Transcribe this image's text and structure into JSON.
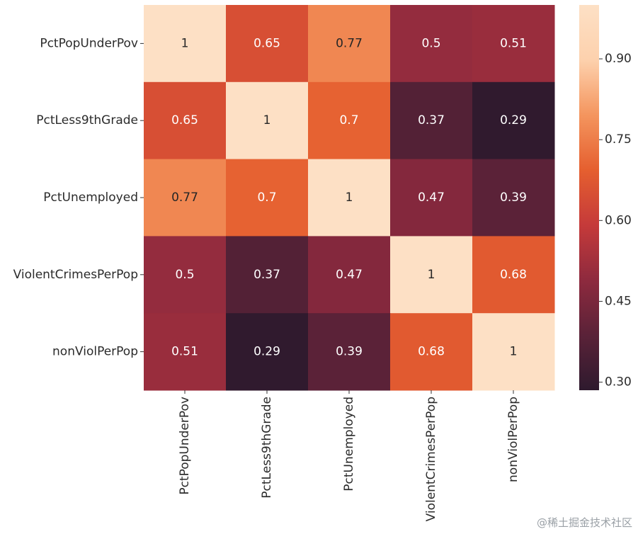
{
  "chart_data": {
    "type": "heatmap",
    "row_labels": [
      "PctPopUnderPov",
      "PctLess9thGrade",
      "PctUnemployed",
      "ViolentCrimesPerPop",
      "nonViolPerPop"
    ],
    "col_labels": [
      "PctPopUnderPov",
      "PctLess9thGrade",
      "PctUnemployed",
      "ViolentCrimesPerPop",
      "nonViolPerPop"
    ],
    "values": [
      [
        1,
        0.65,
        0.77,
        0.5,
        0.51
      ],
      [
        0.65,
        1,
        0.7,
        0.37,
        0.29
      ],
      [
        0.77,
        0.7,
        1,
        0.47,
        0.39
      ],
      [
        0.5,
        0.37,
        0.47,
        1,
        0.68
      ],
      [
        0.51,
        0.29,
        0.39,
        0.68,
        1
      ]
    ],
    "annotations": [
      [
        "1",
        "0.65",
        "0.77",
        "0.5",
        "0.51"
      ],
      [
        "0.65",
        "1",
        "0.7",
        "0.37",
        "0.29"
      ],
      [
        "0.77",
        "0.7",
        "1",
        "0.47",
        "0.39"
      ],
      [
        "0.5",
        "0.37",
        "0.47",
        "1",
        "0.68"
      ],
      [
        "0.51",
        "0.29",
        "0.39",
        "0.68",
        "1"
      ]
    ],
    "colorbar": {
      "vmin": 0.285,
      "vmax": 1.0,
      "ticks": [
        0.3,
        0.45,
        0.6,
        0.75,
        0.9
      ],
      "tick_labels": [
        "0.30",
        "0.45",
        "0.60",
        "0.75",
        "0.90"
      ]
    },
    "colormap": [
      "#2e1a2e",
      "#5a2238",
      "#8e2a3e",
      "#c53a3a",
      "#e55f2f",
      "#f4955e",
      "#fdd1ad",
      "#fde0c5"
    ]
  },
  "watermark": "@稀土掘金技术社区"
}
